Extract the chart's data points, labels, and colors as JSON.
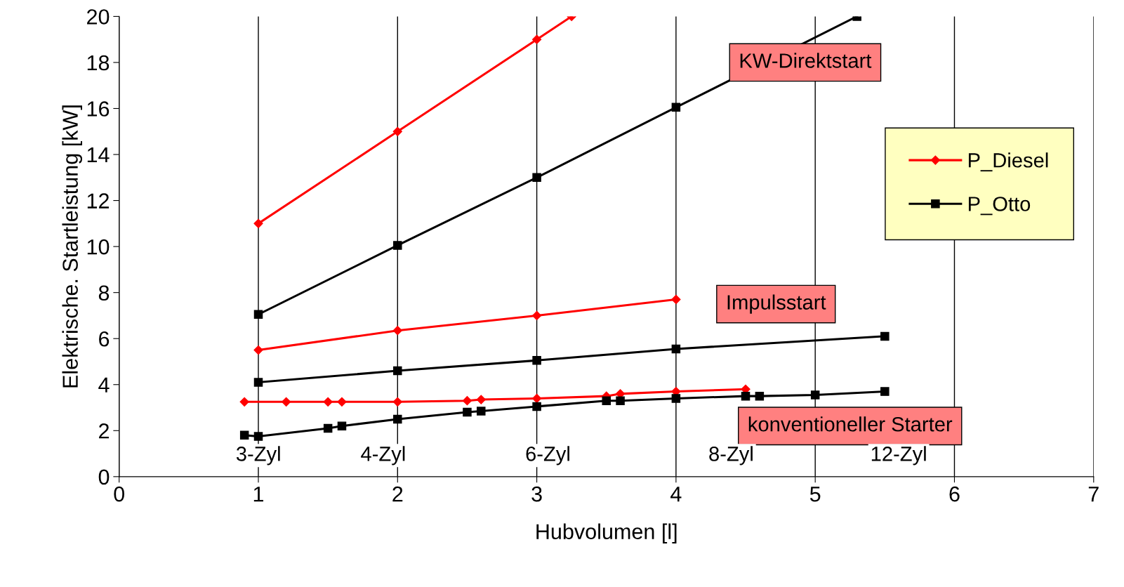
{
  "chart_data": {
    "type": "line",
    "xlabel": "Hubvolumen [l]",
    "ylabel": "Elektrische. Startleistung [kW]",
    "xlim": [
      0,
      7
    ],
    "ylim": [
      0,
      20
    ],
    "xticks": [
      0,
      1,
      2,
      3,
      4,
      5,
      6,
      7
    ],
    "yticks": [
      0,
      2,
      4,
      6,
      8,
      10,
      12,
      14,
      16,
      18,
      20
    ],
    "grid": "x",
    "legend": "top right",
    "line_style": "solid",
    "series": [
      {
        "name": "P_Diesel",
        "color": "#ff0000",
        "marker": "diamond",
        "x": [
          1,
          2,
          3,
          3.25
        ],
        "values": [
          11,
          15,
          19,
          20
        ]
      },
      {
        "name": "P_Otto",
        "color": "#000000",
        "marker": "square",
        "x": [
          1,
          2,
          3,
          4,
          5.3
        ],
        "values": [
          7.05,
          10.05,
          13.0,
          16.05,
          20
        ]
      },
      {
        "color": "#ff0000",
        "marker": "diamond",
        "x": [
          1,
          2,
          3,
          4
        ],
        "values": [
          5.5,
          6.35,
          7.0,
          7.7
        ]
      },
      {
        "color": "#000000",
        "marker": "square",
        "x": [
          1,
          2,
          3,
          4,
          5.5
        ],
        "values": [
          4.1,
          4.6,
          5.05,
          5.55,
          6.1
        ]
      },
      {
        "color": "#ff0000",
        "marker": "diamond",
        "x": [
          0.9,
          1.2,
          1.5,
          1.6,
          2,
          2.5,
          2.6,
          3,
          3.5,
          3.6,
          4,
          4.5
        ],
        "values": [
          3.25,
          3.25,
          3.25,
          3.25,
          3.25,
          3.3,
          3.35,
          3.4,
          3.5,
          3.6,
          3.7,
          3.8
        ]
      },
      {
        "color": "#000000",
        "marker": "square",
        "x": [
          0.9,
          1,
          1.5,
          1.6,
          2,
          2.5,
          2.6,
          3,
          3.5,
          3.6,
          4,
          4.5,
          4.6,
          5,
          5.5
        ],
        "values": [
          1.8,
          1.75,
          2.1,
          2.2,
          2.5,
          2.8,
          2.85,
          3.05,
          3.3,
          3.3,
          3.4,
          3.5,
          3.5,
          3.55,
          3.7
        ]
      }
    ],
    "annotations": [
      "KW-Direktstart",
      "Impulsstart",
      "konventioneller Starter",
      "3-Zyl",
      "4-Zyl",
      "6-Zyl",
      "8-Zyl",
      "12-Zyl"
    ]
  }
}
